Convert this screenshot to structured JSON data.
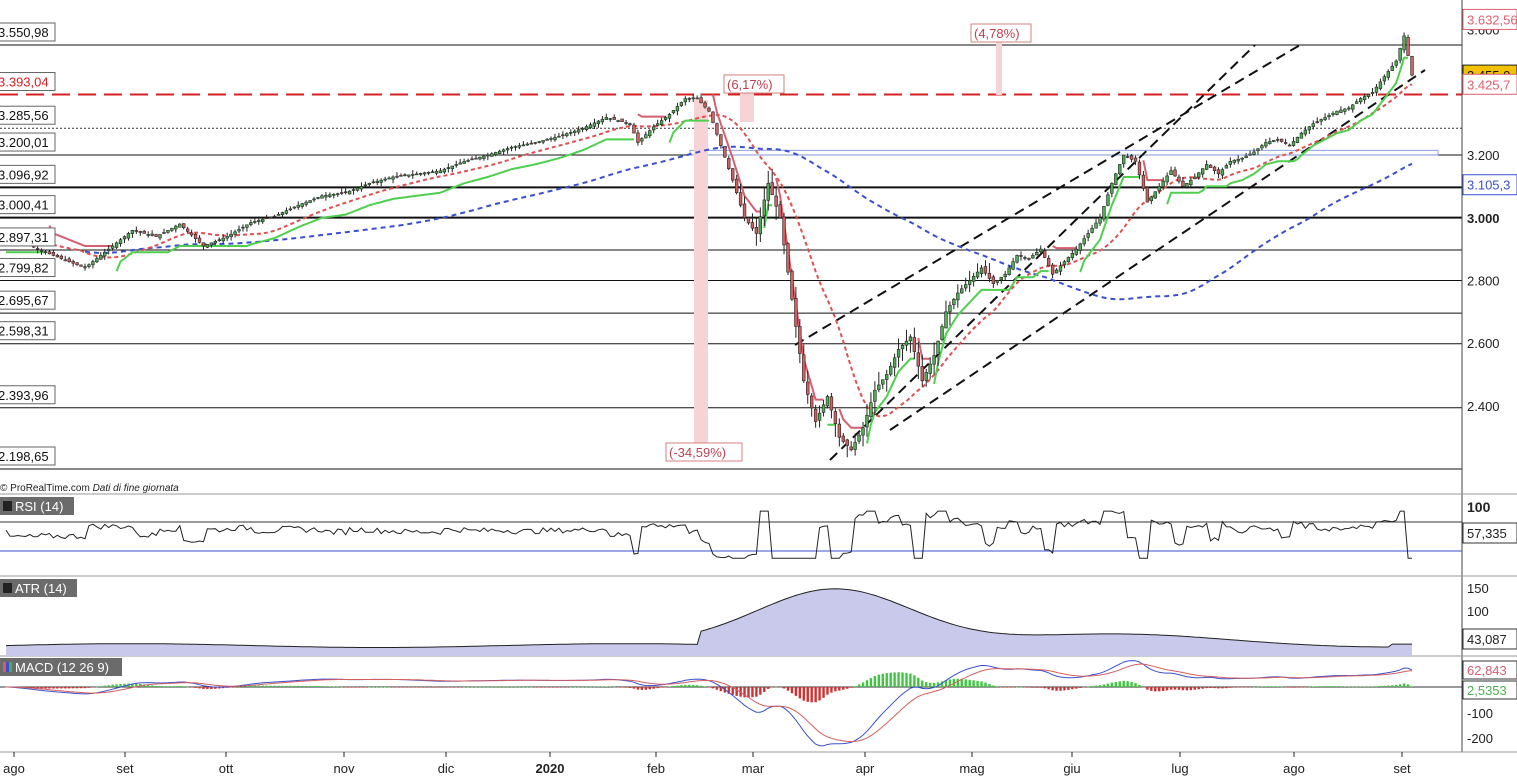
{
  "source_note": "© ProRealTime.com",
  "source_note_italic": "Dati di fine giornata",
  "chart_data": {
    "type": "candlestick",
    "x_labels": [
      "ago",
      "set",
      "ott",
      "nov",
      "dic",
      "2020",
      "feb",
      "mar",
      "apr",
      "mag",
      "giu",
      "lug",
      "ago",
      "set"
    ],
    "price_axis": {
      "ticks": [
        "3.600",
        "3.200",
        "3.000",
        "2.800",
        "2.600",
        "2.400"
      ],
      "ylim": [
        2150,
        3700
      ]
    },
    "price_right_tags": [
      {
        "text": "3.632,56",
        "value": 3632.56,
        "color": "#e06070"
      },
      {
        "text": "3.455,0",
        "value": 3455.0,
        "color": "#f2c200"
      },
      {
        "text": "3.425,7",
        "value": 3425.7,
        "color": "#e06070"
      },
      {
        "text": "3.105,3",
        "value": 3105.3,
        "color": "#3a4fd0"
      }
    ],
    "horizontal_levels": [
      {
        "text": "3.550,98",
        "value": 3550.98,
        "style": "solid"
      },
      {
        "text": "3.393,04",
        "value": 3393.04,
        "style": "dashed-red"
      },
      {
        "text": "3.285,56",
        "value": 3285.56,
        "style": "dotted"
      },
      {
        "text": "3.200,01",
        "value": 3200.01,
        "style": "solid"
      },
      {
        "text": "3.096,92",
        "value": 3096.92,
        "style": "solid-bold"
      },
      {
        "text": "3.000,41",
        "value": 3000.41,
        "style": "solid-bold"
      },
      {
        "text": "2.897,31",
        "value": 2897.31,
        "style": "solid"
      },
      {
        "text": "2.799,82",
        "value": 2799.82,
        "style": "solid"
      },
      {
        "text": "2.695,67",
        "value": 2695.67,
        "style": "solid"
      },
      {
        "text": "2.598,31",
        "value": 2598.31,
        "style": "solid"
      },
      {
        "text": "2.393,96",
        "value": 2393.96,
        "style": "solid"
      },
      {
        "text": "2.198,65",
        "value": 2198.65,
        "style": "solid"
      }
    ],
    "annotations": [
      {
        "text": "(6,17%)",
        "position": "near-feb-peak"
      },
      {
        "text": "(4,78%)",
        "position": "mid-may"
      },
      {
        "text": "(-34,59%)",
        "position": "feb-bottom"
      }
    ],
    "close_series_anchors": [
      [
        0,
        2950
      ],
      [
        8,
        2900
      ],
      [
        14,
        2870
      ],
      [
        20,
        2840
      ],
      [
        26,
        2900
      ],
      [
        32,
        2960
      ],
      [
        38,
        2940
      ],
      [
        44,
        2980
      ],
      [
        50,
        2910
      ],
      [
        56,
        2940
      ],
      [
        62,
        2985
      ],
      [
        68,
        3005
      ],
      [
        74,
        3040
      ],
      [
        80,
        3070
      ],
      [
        86,
        3080
      ],
      [
        92,
        3110
      ],
      [
        98,
        3130
      ],
      [
        104,
        3140
      ],
      [
        110,
        3150
      ],
      [
        116,
        3180
      ],
      [
        122,
        3200
      ],
      [
        128,
        3225
      ],
      [
        134,
        3240
      ],
      [
        140,
        3260
      ],
      [
        146,
        3285
      ],
      [
        152,
        3320
      ],
      [
        158,
        3300
      ],
      [
        160,
        3240
      ],
      [
        164,
        3290
      ],
      [
        168,
        3330
      ],
      [
        172,
        3380
      ],
      [
        175,
        3380
      ],
      [
        178,
        3340
      ],
      [
        181,
        3230
      ],
      [
        184,
        3120
      ],
      [
        187,
        3000
      ],
      [
        190,
        2950
      ],
      [
        193,
        3110
      ],
      [
        196,
        3000
      ],
      [
        199,
        2740
      ],
      [
        202,
        2480
      ],
      [
        205,
        2350
      ],
      [
        208,
        2430
      ],
      [
        211,
        2300
      ],
      [
        214,
        2260
      ],
      [
        217,
        2330
      ],
      [
        220,
        2450
      ],
      [
        223,
        2500
      ],
      [
        226,
        2580
      ],
      [
        229,
        2620
      ],
      [
        232,
        2480
      ],
      [
        235,
        2560
      ],
      [
        238,
        2700
      ],
      [
        241,
        2760
      ],
      [
        244,
        2800
      ],
      [
        247,
        2840
      ],
      [
        250,
        2790
      ],
      [
        253,
        2820
      ],
      [
        256,
        2880
      ],
      [
        259,
        2870
      ],
      [
        262,
        2900
      ],
      [
        265,
        2820
      ],
      [
        268,
        2860
      ],
      [
        271,
        2900
      ],
      [
        274,
        2950
      ],
      [
        277,
        3000
      ],
      [
        280,
        3110
      ],
      [
        283,
        3200
      ],
      [
        286,
        3180
      ],
      [
        289,
        3050
      ],
      [
        292,
        3100
      ],
      [
        295,
        3150
      ],
      [
        298,
        3100
      ],
      [
        301,
        3130
      ],
      [
        304,
        3170
      ],
      [
        307,
        3140
      ],
      [
        310,
        3180
      ],
      [
        313,
        3190
      ],
      [
        316,
        3210
      ],
      [
        319,
        3240
      ],
      [
        322,
        3250
      ],
      [
        325,
        3230
      ],
      [
        328,
        3270
      ],
      [
        331,
        3300
      ],
      [
        334,
        3320
      ],
      [
        337,
        3340
      ],
      [
        340,
        3350
      ],
      [
        343,
        3380
      ],
      [
        346,
        3400
      ],
      [
        349,
        3450
      ],
      [
        352,
        3500
      ],
      [
        354,
        3580
      ],
      [
        356,
        3455
      ]
    ],
    "rsi": {
      "label": "RSI (14)",
      "current": "57,335",
      "axis": [
        "100"
      ]
    },
    "atr": {
      "label": "ATR (14)",
      "current": "43,087",
      "axis": [
        "150",
        "100"
      ]
    },
    "macd": {
      "label": "MACD (12 26 9)",
      "current_macd": "62,843",
      "current_hist": "2,5353",
      "axis": [
        "-100",
        "-200"
      ]
    }
  },
  "colors": {
    "up": "#4caf50",
    "down": "#d45f5f",
    "ma_red": "#e05050",
    "ma_blue": "#3a4fd0",
    "stop_red": "#d45f70",
    "stop_green": "#4ed04e",
    "panel_label_bg": "#6b6b6b"
  }
}
